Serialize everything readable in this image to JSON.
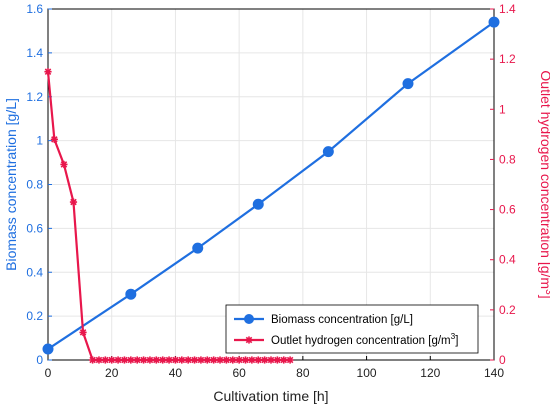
{
  "chart_data": {
    "type": "line",
    "xlabel": "Cultivation time [h]",
    "xlim": [
      0,
      140
    ],
    "xticks": [
      0,
      20,
      40,
      60,
      80,
      100,
      120,
      140
    ],
    "ylabel_left": "Biomass concentration [g/L]",
    "ylim_left": [
      0,
      1.6
    ],
    "yticks_left": [
      0,
      0.2,
      0.4,
      0.6,
      0.8,
      1,
      1.2,
      1.4,
      1.6
    ],
    "ylabel_right": "Outlet hydrogen concentration [g/m3]",
    "ylim_right": [
      0,
      1.4
    ],
    "yticks_right": [
      0,
      0.2,
      0.4,
      0.6,
      0.8,
      1,
      1.2,
      1.4
    ],
    "grid": true,
    "legend_position": "bottom-right",
    "series": [
      {
        "name": "Biomass concentration [g/L]",
        "axis": "left",
        "color": "#1f6fe0",
        "marker": "circle",
        "x": [
          0,
          26,
          47,
          66,
          88,
          113,
          140
        ],
        "y": [
          0.05,
          0.3,
          0.51,
          0.71,
          0.95,
          1.26,
          1.54
        ]
      },
      {
        "name": "Outlet hydrogen concentration [g/m3]",
        "axis": "right",
        "color": "#e8174c",
        "marker": "star",
        "x": [
          0,
          2,
          5,
          8,
          11,
          14,
          16,
          18,
          20,
          22,
          24,
          26,
          28,
          30,
          32,
          34,
          36,
          38,
          40,
          42,
          44,
          46,
          48,
          50,
          52,
          54,
          56,
          58,
          60,
          62,
          64,
          66,
          68,
          70,
          72,
          74,
          76
        ],
        "y": [
          1.15,
          0.88,
          0.78,
          0.63,
          0.11,
          0,
          0,
          0,
          0,
          0,
          0,
          0,
          0,
          0,
          0,
          0,
          0,
          0,
          0,
          0,
          0,
          0,
          0,
          0,
          0,
          0,
          0,
          0,
          0,
          0,
          0,
          0,
          0,
          0,
          0,
          0,
          0
        ]
      }
    ]
  }
}
